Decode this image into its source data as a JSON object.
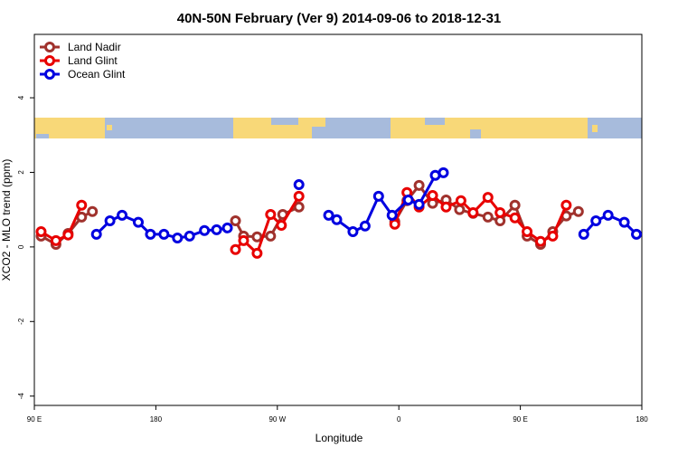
{
  "chart_data": {
    "type": "line",
    "title": "40N-50N February (Ver 9)   2014-09-06 to 2018-12-31",
    "xlabel": "Longitude",
    "ylabel": "XCO2 - MLO trend (ppm)",
    "xlim": [
      90,
      540
    ],
    "ylim": [
      -4.25,
      5.7
    ],
    "xticks": [
      {
        "value": 90,
        "label": "90 E"
      },
      {
        "value": 180,
        "label": "180"
      },
      {
        "value": 270,
        "label": "90 W"
      },
      {
        "value": 360,
        "label": "0"
      },
      {
        "value": 450,
        "label": "90 E"
      },
      {
        "value": 540,
        "label": "180"
      }
    ],
    "yticks": [
      -4,
      -2,
      0,
      2,
      4
    ],
    "legend": "top-left",
    "series": [
      {
        "name": "Land Nadir",
        "color": "#a0322d",
        "x": [
          95,
          106,
          115,
          125,
          133,
          null,
          239,
          245,
          255,
          265,
          274,
          286,
          null,
          357,
          366,
          375,
          385,
          395,
          405,
          415,
          426,
          435,
          446,
          455,
          465,
          474,
          484,
          493
        ],
        "values": [
          0.29,
          0.07,
          0.36,
          0.8,
          0.95,
          null,
          0.7,
          0.29,
          0.27,
          0.29,
          0.87,
          1.07,
          null,
          0.68,
          1.24,
          1.65,
          1.17,
          1.26,
          1.0,
          0.9,
          0.8,
          0.7,
          1.12,
          0.29,
          0.07,
          0.41,
          0.83,
          0.95
        ]
      },
      {
        "name": "Land Glint",
        "color": "#e80000",
        "x": [
          95,
          106,
          115,
          125,
          null,
          239,
          245,
          255,
          265,
          273,
          286,
          null,
          357,
          366,
          375,
          385,
          395,
          406,
          415,
          426,
          435,
          446,
          455,
          465,
          474,
          484
        ],
        "values": [
          0.41,
          0.17,
          0.32,
          1.12,
          null,
          -0.07,
          0.17,
          -0.17,
          0.87,
          0.58,
          1.36,
          null,
          0.61,
          1.46,
          1.07,
          1.38,
          1.07,
          1.24,
          0.92,
          1.33,
          0.92,
          0.78,
          0.41,
          0.15,
          0.29,
          1.12
        ]
      },
      {
        "name": "Ocean Glint",
        "color": "#0000e0",
        "x": [
          136,
          146,
          155,
          167,
          176,
          186,
          196,
          205,
          216,
          225,
          233,
          null,
          286,
          null,
          308,
          314,
          326,
          335,
          345,
          355,
          367,
          375,
          387,
          393,
          null,
          497,
          506,
          515,
          527,
          536
        ],
        "values": [
          0.34,
          0.7,
          0.85,
          0.66,
          0.34,
          0.34,
          0.24,
          0.29,
          0.44,
          0.46,
          0.51,
          null,
          1.67,
          null,
          0.85,
          0.73,
          0.41,
          0.56,
          1.36,
          0.85,
          1.26,
          1.14,
          1.92,
          1.99,
          null,
          0.34,
          0.7,
          0.85,
          0.66,
          0.34
        ]
      }
    ]
  }
}
